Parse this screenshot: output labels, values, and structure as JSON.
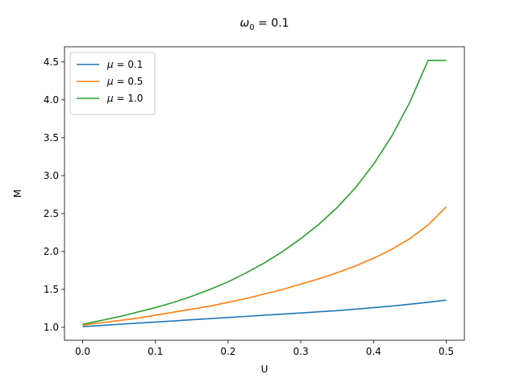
{
  "chart_data": {
    "type": "line",
    "title": "ω₀ = 0.1",
    "xlabel": "U",
    "ylabel": "M",
    "xlim": [
      -0.025,
      0.525
    ],
    "ylim": [
      0.83,
      4.7
    ],
    "xticks": [
      0.0,
      0.1,
      0.2,
      0.3,
      0.4,
      0.5
    ],
    "xtick_labels": [
      "0.0",
      "0.1",
      "0.2",
      "0.3",
      "0.4",
      "0.5"
    ],
    "yticks": [
      1.0,
      1.5,
      2.0,
      2.5,
      3.0,
      3.5,
      4.0,
      4.5
    ],
    "ytick_labels": [
      "1.0",
      "1.5",
      "2.0",
      "2.5",
      "3.0",
      "3.5",
      "4.0",
      "4.5"
    ],
    "grid": false,
    "legend_position": "top-left",
    "x": [
      0.0,
      0.025,
      0.05,
      0.075,
      0.1,
      0.125,
      0.15,
      0.175,
      0.2,
      0.225,
      0.25,
      0.275,
      0.3,
      0.325,
      0.35,
      0.375,
      0.4,
      0.425,
      0.45,
      0.475,
      0.5
    ],
    "series": [
      {
        "name": "μ = 0.1",
        "color": "#1f77b4",
        "values": [
          1.01,
          1.025,
          1.04,
          1.055,
          1.07,
          1.085,
          1.1,
          1.115,
          1.13,
          1.145,
          1.16,
          1.175,
          1.19,
          1.205,
          1.22,
          1.24,
          1.26,
          1.28,
          1.305,
          1.33,
          1.36
        ]
      },
      {
        "name": "μ = 0.5",
        "color": "#ff7f0e",
        "values": [
          1.03,
          1.06,
          1.09,
          1.12,
          1.16,
          1.2,
          1.24,
          1.28,
          1.33,
          1.38,
          1.44,
          1.5,
          1.57,
          1.64,
          1.72,
          1.81,
          1.91,
          2.03,
          2.17,
          2.35,
          2.59
        ]
      },
      {
        "name": "μ = 1.0",
        "color": "#2ca02c",
        "values": [
          1.04,
          1.09,
          1.14,
          1.2,
          1.26,
          1.33,
          1.41,
          1.5,
          1.6,
          1.72,
          1.85,
          2.0,
          2.17,
          2.36,
          2.58,
          2.84,
          3.15,
          3.52,
          3.97,
          4.52,
          4.52
        ]
      }
    ]
  }
}
